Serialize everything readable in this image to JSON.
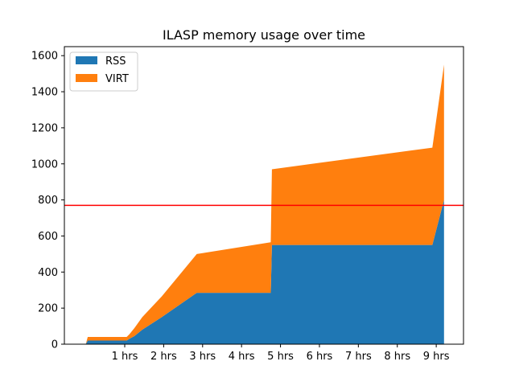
{
  "chart_data": {
    "type": "area",
    "stacked": true,
    "title": "ILASP memory usage over time",
    "xlabel": "",
    "ylabel": "",
    "xlim": [
      -0.55,
      9.7
    ],
    "ylim": [
      0,
      1650
    ],
    "x_ticks": [
      1,
      2,
      3,
      4,
      5,
      6,
      7,
      8,
      9
    ],
    "x_tick_labels": [
      "1 hrs",
      "2 hrs",
      "3 hrs",
      "4 hrs",
      "5 hrs",
      "6 hrs",
      "7 hrs",
      "8 hrs",
      "9 hrs"
    ],
    "y_ticks": [
      0,
      200,
      400,
      600,
      800,
      1000,
      1200,
      1400,
      1600
    ],
    "y_tick_labels": [
      "0",
      "200",
      "400",
      "600",
      "800",
      "1000",
      "1200",
      "1400",
      "1600"
    ],
    "legend_position": "top-left",
    "x": [
      0.0,
      0.05,
      1.05,
      1.12,
      1.25,
      1.45,
      1.95,
      2.85,
      4.75,
      4.78,
      8.9,
      9.2
    ],
    "series": [
      {
        "name": "RSS",
        "color": "#1f77b4",
        "values": [
          0,
          20,
          20,
          30,
          45,
          80,
          150,
          285,
          285,
          550,
          550,
          800
        ]
      },
      {
        "name": "VIRT",
        "color": "#ff7f0e",
        "values": [
          0,
          20,
          20,
          25,
          45,
          70,
          115,
          215,
          280,
          420,
          540,
          750
        ]
      }
    ],
    "threshold_line": {
      "value": 770,
      "color": "#ff0000"
    }
  }
}
